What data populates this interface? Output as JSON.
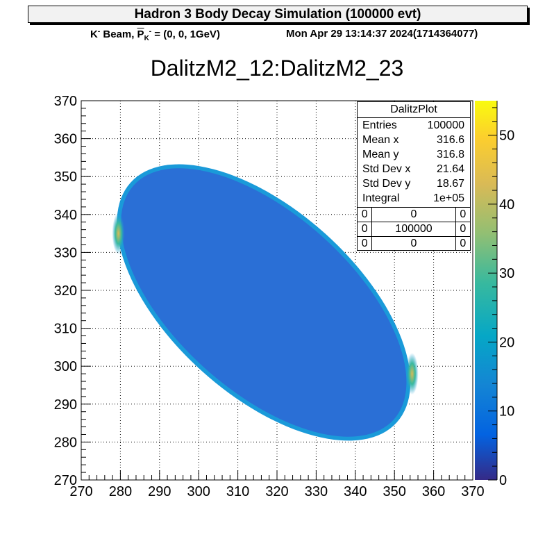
{
  "canvas_title": "Hadron 3 Body Decay Simulation (100000 evt)",
  "beam_label": "K",
  "beam_sup": "-",
  "beam_text": " Beam, ",
  "momentum_symbol": "P",
  "momentum_sub": "K",
  "momentum_sup": "-",
  "momentum_value": " = (0, 0, 1GeV)",
  "timestamp": "Mon Apr 29 13:14:37 2024(1714364077)",
  "stats": {
    "name": "DalitzPlot",
    "rows": [
      {
        "key": "Entries",
        "value": "100000"
      },
      {
        "key": "Mean x",
        "value": "316.6"
      },
      {
        "key": "Mean y",
        "value": "316.8"
      },
      {
        "key": "Std Dev x",
        "value": "21.64"
      },
      {
        "key": "Std Dev y",
        "value": "18.67"
      },
      {
        "key": "Integral",
        "value": "1e+05"
      }
    ],
    "grid": [
      [
        "0",
        "0",
        "0"
      ],
      [
        "0",
        "100000",
        "0"
      ],
      [
        "0",
        "0",
        "0"
      ]
    ]
  },
  "colors": {
    "frame": "#000000",
    "grid": "#000000",
    "fill_base": "#2a6fd6",
    "fill_edge": "#1a9ad9",
    "palette": [
      "#352a87",
      "#0363e1",
      "#1485d4",
      "#06a7c6",
      "#38b99e",
      "#92bf73",
      "#d9ba56",
      "#fcce2e",
      "#f9fb0e"
    ]
  },
  "chart_data": {
    "type": "heatmap",
    "title": "DalitzM2_12:DalitzM2_23",
    "xlabel": "",
    "ylabel": "",
    "xlim": [
      270,
      370
    ],
    "ylim": [
      270,
      370
    ],
    "x_ticks": [
      "270",
      "280",
      "290",
      "300",
      "310",
      "320",
      "330",
      "340",
      "350",
      "360",
      "370"
    ],
    "y_ticks": [
      "270",
      "280",
      "290",
      "300",
      "310",
      "320",
      "330",
      "340",
      "350",
      "360",
      "370"
    ],
    "z_range": [
      0,
      55
    ],
    "z_ticks": [
      "0",
      "10",
      "20",
      "30",
      "40",
      "50"
    ],
    "grid": true,
    "region": {
      "shape": "ellipse",
      "center": [
        316.6,
        316.8
      ],
      "x_extent": [
        279,
        355
      ],
      "y_extent": [
        279,
        354
      ],
      "orientation": "tilted -45 deg",
      "typical_count": 8,
      "edge_peaks": [
        {
          "x": 279.5,
          "y": 335,
          "count": 25
        },
        {
          "x": 354.5,
          "y": 298,
          "count": 20
        }
      ]
    }
  }
}
